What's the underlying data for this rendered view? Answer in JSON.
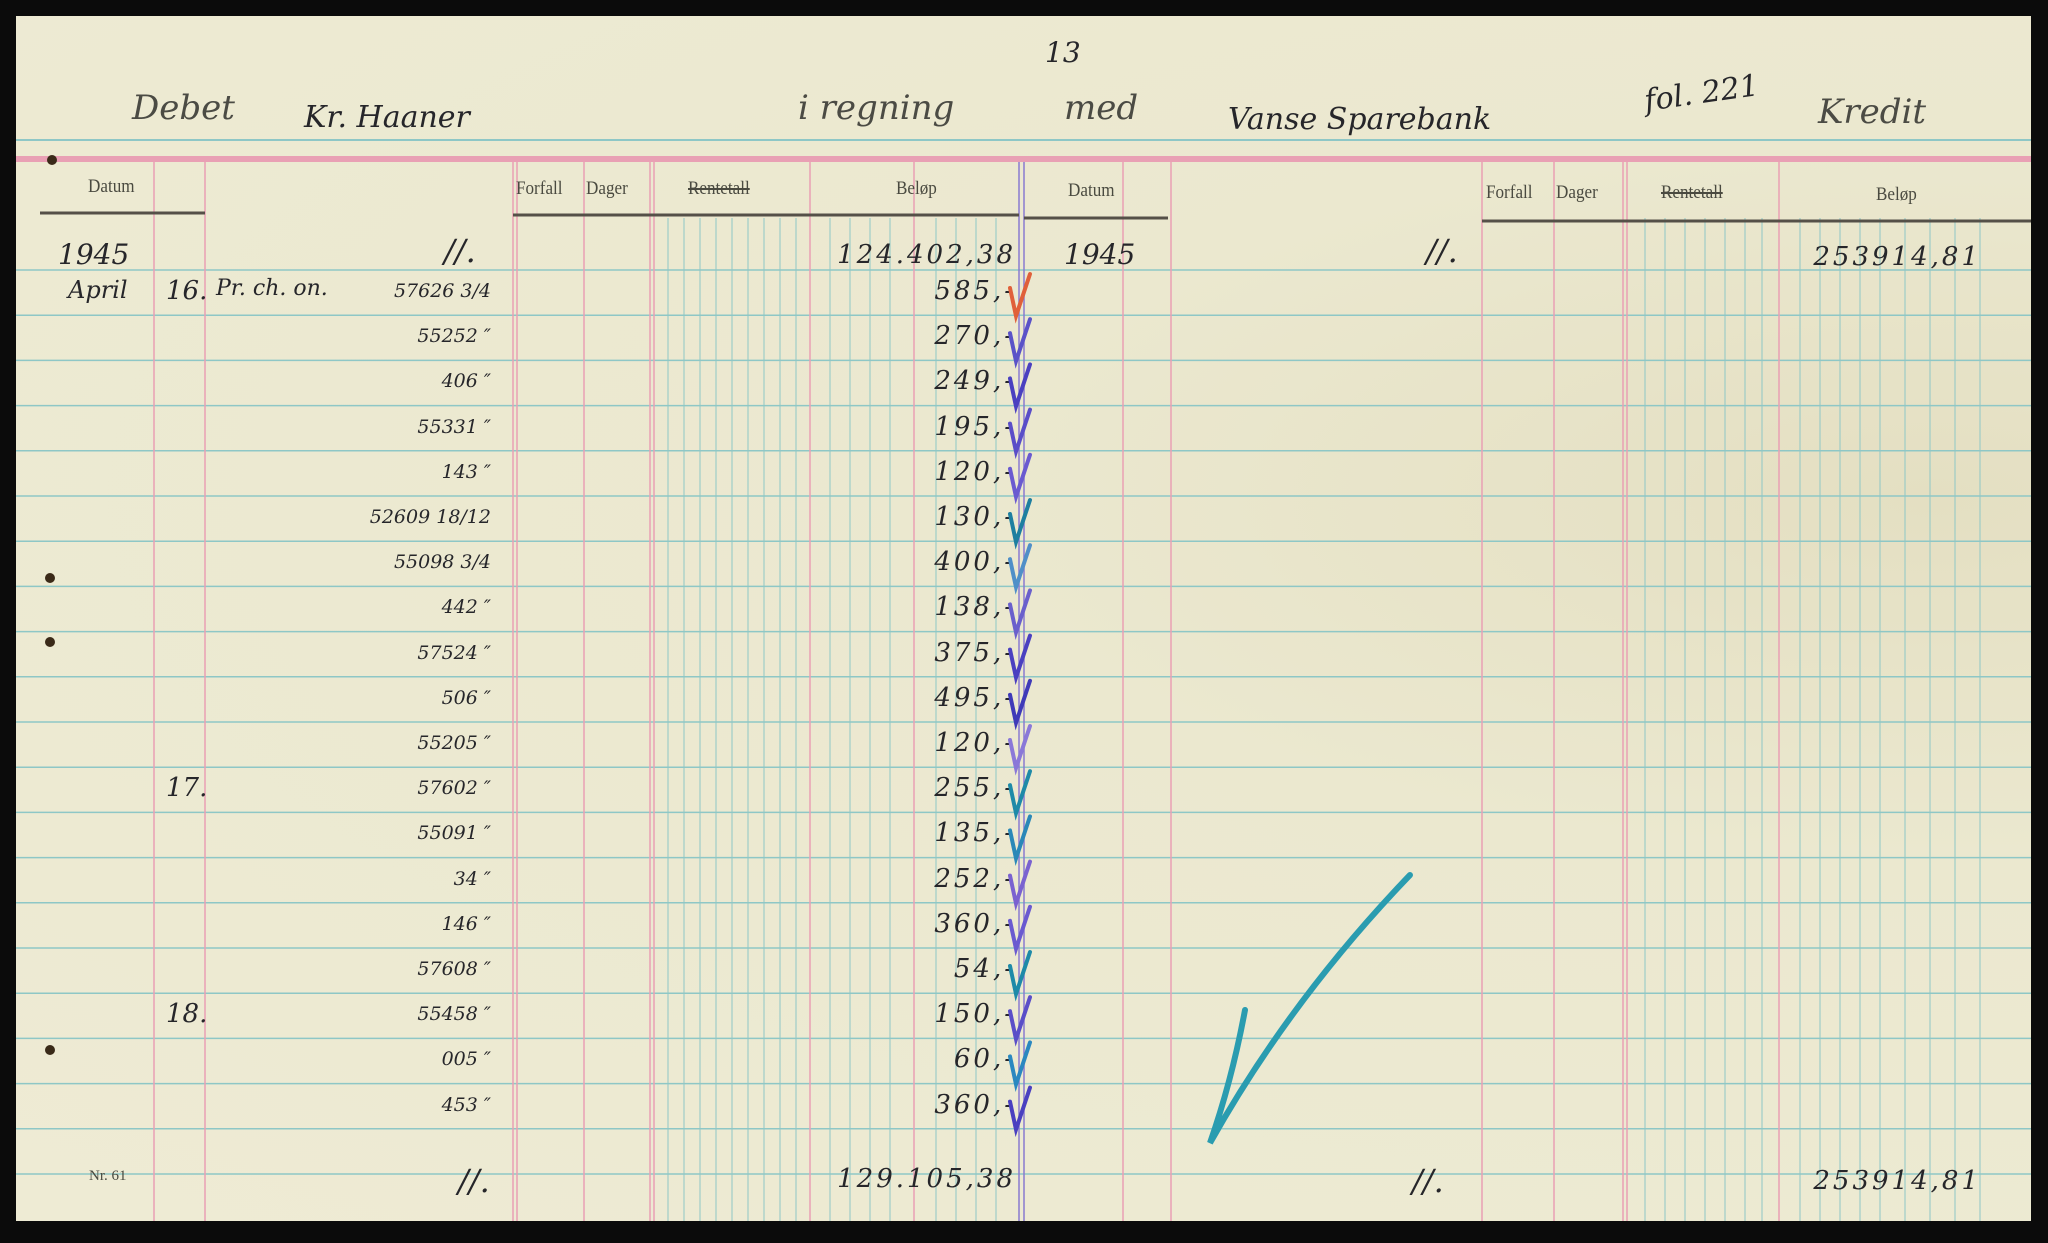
{
  "page_number": "13",
  "folio": "fol. 221",
  "header": {
    "debet_label": "Debet",
    "debtor_name": "Kr. Haaner",
    "middle_label": "i regning",
    "med_label": "med",
    "creditor_name": "Vanse Sparebank",
    "kredit_label": "Kredit"
  },
  "columns_left": {
    "datum": "Datum",
    "forfall": "Forfall",
    "dager": "Dager",
    "rentetall": "Rentetall",
    "belop": "Beløp"
  },
  "columns_right": {
    "datum": "Datum",
    "forfall": "Forfall",
    "dager": "Dager",
    "rentetall": "Rentetall",
    "belop": "Beløp"
  },
  "debet": {
    "opening": {
      "year": "1945",
      "ditto": "//.",
      "amount": "124.402,38"
    },
    "entries": [
      {
        "month": "April",
        "day": "16.",
        "text": "Pr. ch. on.",
        "ref": "57626 3/4",
        "amount": "585,-",
        "check_color": "#e0603a"
      },
      {
        "ref": "55252 ″",
        "amount": "270,-",
        "check_color": "#5a52c8"
      },
      {
        "ref": "406 ″",
        "amount": "249,-",
        "check_color": "#4a40c0"
      },
      {
        "ref": "55331 ″",
        "amount": "195,-",
        "check_color": "#5a4ec8"
      },
      {
        "ref": "143 ″",
        "amount": "120,-",
        "check_color": "#6a5ad0"
      },
      {
        "ref": "52609 18/12",
        "amount": "130,-",
        "check_color": "#1e7fa0"
      },
      {
        "ref": "55098 3/4",
        "amount": "400,-",
        "check_color": "#4f8fc8"
      },
      {
        "ref": "442 ″",
        "amount": "138,-",
        "check_color": "#6a60cc"
      },
      {
        "ref": "57524 ″",
        "amount": "375,-",
        "check_color": "#4a40c0"
      },
      {
        "ref": "506 ″",
        "amount": "495,-",
        "check_color": "#3f3ab8"
      },
      {
        "ref": "55205 ″",
        "amount": "120,-",
        "check_color": "#8a78d8"
      },
      {
        "day": "17.",
        "ref": "57602 ″",
        "amount": "255,-",
        "check_color": "#1e8aa8"
      },
      {
        "ref": "55091 ″",
        "amount": "135,-",
        "check_color": "#2a88b8"
      },
      {
        "ref": "34 ″",
        "amount": "252,-",
        "check_color": "#7a62d0"
      },
      {
        "ref": "146 ″",
        "amount": "360,-",
        "check_color": "#6a5ad0"
      },
      {
        "ref": "57608 ″",
        "amount": "54,-",
        "check_color": "#1e8aa8"
      },
      {
        "day": "18.",
        "ref": "55458 ″",
        "amount": "150,-",
        "check_color": "#5a4ec8"
      },
      {
        "ref": "005 ″",
        "amount": "60,-",
        "check_color": "#2a88c0"
      },
      {
        "ref": "453 ″",
        "amount": "360,-",
        "check_color": "#4a40c0"
      }
    ],
    "total": {
      "ditto": "//.",
      "amount": "129.105,38"
    }
  },
  "kredit": {
    "opening": {
      "year": "1945",
      "ditto": "//.",
      "amount": "253914,81"
    },
    "total": {
      "ditto": "//.",
      "amount": "253914,81"
    }
  },
  "form_number": "Nr. 61",
  "colors": {
    "pink_rule": "#e9a0b4",
    "blue_rule": "#8ec7c6",
    "purple_rule": "#8a7ad0",
    "ink": "#26262a",
    "big_check": "#2a9cb0"
  }
}
